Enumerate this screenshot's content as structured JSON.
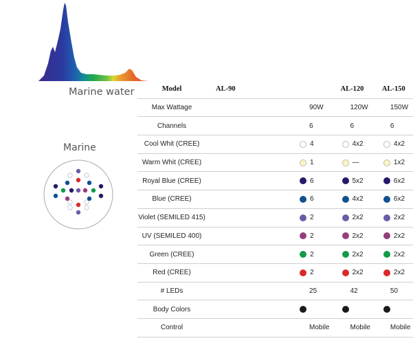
{
  "captions": {
    "spectrum": "Marine water",
    "diagram": "Marine"
  },
  "table": {
    "header": {
      "label": "Model",
      "models": [
        "AL-90",
        "AL-120",
        "AL-150"
      ]
    },
    "rows": [
      {
        "label": "Max Wattage",
        "values": [
          "90W",
          "120W",
          "150W"
        ]
      },
      {
        "label": "Channels",
        "values": [
          "6",
          "6",
          "6"
        ]
      },
      {
        "label": "Cool Whit (CREE)",
        "color": "#ffffff",
        "values": [
          "4",
          "4x2",
          "4x2"
        ]
      },
      {
        "label": "Warm Whit (CREE)",
        "color": "#fdf6bf",
        "values": [
          "1",
          "—",
          "1x2"
        ]
      },
      {
        "label": "Royal Blue (CREE)",
        "color": "#231a6b",
        "values": [
          "6",
          "5x2",
          "6x2"
        ]
      },
      {
        "label": "Blue (CREE)",
        "color": "#10508e",
        "values": [
          "6",
          "4x2",
          "6x2"
        ]
      },
      {
        "label": "Violet (SEMILED 415)",
        "color": "#6c5ba4",
        "values": [
          "2",
          "2x2",
          "2x2"
        ]
      },
      {
        "label": "UV (SEMILED 400)",
        "color": "#943f7c",
        "values": [
          "2",
          "2x2",
          "2x2"
        ]
      },
      {
        "label": "Green (CREE)",
        "color": "#139a48",
        "values": [
          "2",
          "2x2",
          "2x2"
        ]
      },
      {
        "label": "Red (CREE)",
        "color": "#d92a2a",
        "values": [
          "2",
          "2x2",
          "2x2"
        ]
      },
      {
        "label": "# LEDs",
        "values": [
          "25",
          "42",
          "50"
        ]
      },
      {
        "label": "Body Colors",
        "color": "#1a1a1a",
        "values": [
          "",
          "",
          ""
        ]
      },
      {
        "label": "Control",
        "values": [
          "Mobile",
          "Mobile",
          "Mobile"
        ]
      }
    ]
  }
}
